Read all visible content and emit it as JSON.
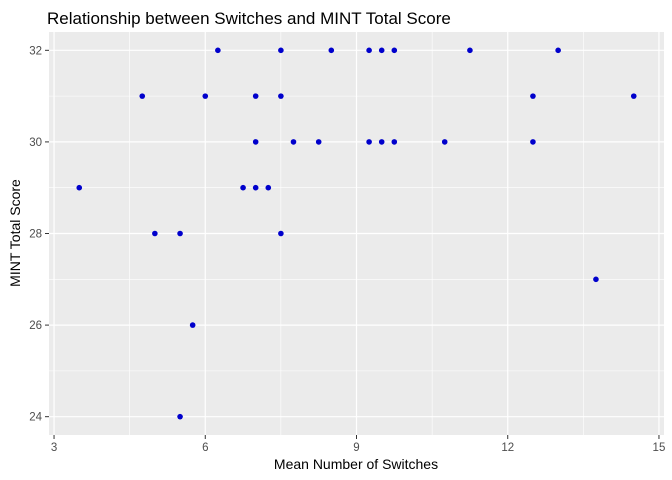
{
  "chart_data": {
    "type": "scatter",
    "title": "Relationship between Switches and MINT Total Score",
    "xlabel": "Mean Number of Switches",
    "ylabel": "MINT Total Score",
    "xlim": [
      2.9,
      15.1
    ],
    "ylim": [
      23.6,
      32.4
    ],
    "xticks": [
      3,
      6,
      9,
      12,
      15
    ],
    "yticks": [
      24,
      26,
      28,
      30,
      32
    ],
    "grid": true,
    "point_color": "#0000cc",
    "panel_background": "#ebebeb",
    "grid_color": "#ffffff",
    "points": [
      {
        "x": 3.5,
        "y": 29
      },
      {
        "x": 4.75,
        "y": 31
      },
      {
        "x": 5.0,
        "y": 28
      },
      {
        "x": 5.5,
        "y": 28
      },
      {
        "x": 5.5,
        "y": 24
      },
      {
        "x": 5.75,
        "y": 26
      },
      {
        "x": 6.0,
        "y": 31
      },
      {
        "x": 6.25,
        "y": 32
      },
      {
        "x": 6.75,
        "y": 29
      },
      {
        "x": 7.0,
        "y": 29
      },
      {
        "x": 7.0,
        "y": 30
      },
      {
        "x": 7.0,
        "y": 31
      },
      {
        "x": 7.25,
        "y": 29
      },
      {
        "x": 7.5,
        "y": 32
      },
      {
        "x": 7.5,
        "y": 31
      },
      {
        "x": 7.5,
        "y": 28
      },
      {
        "x": 7.75,
        "y": 30
      },
      {
        "x": 8.25,
        "y": 30
      },
      {
        "x": 8.5,
        "y": 32
      },
      {
        "x": 9.25,
        "y": 32
      },
      {
        "x": 9.25,
        "y": 30
      },
      {
        "x": 9.5,
        "y": 32
      },
      {
        "x": 9.5,
        "y": 30
      },
      {
        "x": 9.75,
        "y": 32
      },
      {
        "x": 9.75,
        "y": 30
      },
      {
        "x": 10.75,
        "y": 30
      },
      {
        "x": 11.25,
        "y": 32
      },
      {
        "x": 12.5,
        "y": 31
      },
      {
        "x": 12.5,
        "y": 30
      },
      {
        "x": 13.0,
        "y": 32
      },
      {
        "x": 13.75,
        "y": 27
      },
      {
        "x": 14.5,
        "y": 31
      }
    ]
  }
}
